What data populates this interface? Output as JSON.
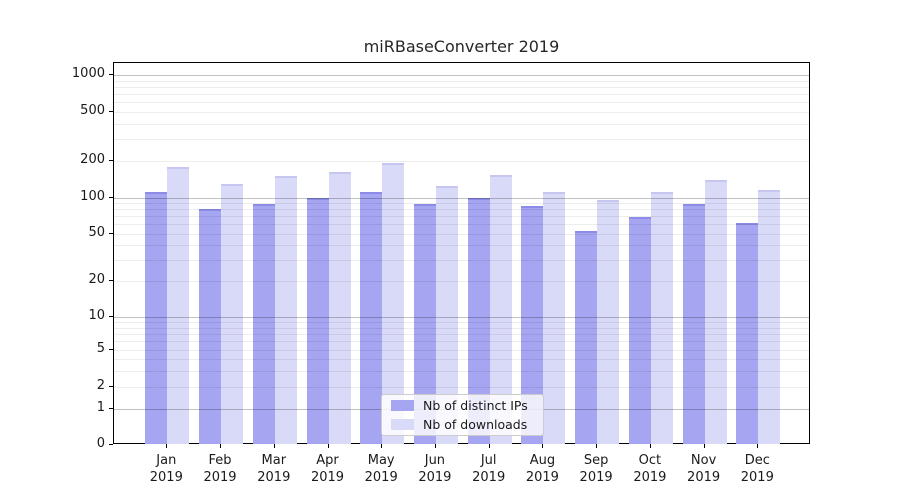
{
  "chart_data": {
    "type": "bar",
    "title": "miRBaseConverter 2019",
    "categories": [
      "Jan",
      "Feb",
      "Mar",
      "Apr",
      "May",
      "Jun",
      "Jul",
      "Aug",
      "Sep",
      "Oct",
      "Nov",
      "Dec"
    ],
    "x_tick_second_line": "2019",
    "series": [
      {
        "name": "Nb of distinct IPs",
        "color": "#a5a5f1",
        "edge_color": "#8c8ce6",
        "values": [
          110,
          80,
          89,
          100,
          112,
          88,
          100,
          85,
          53,
          69,
          88,
          62
        ]
      },
      {
        "name": "Nb of downloads",
        "color": "#d9d9f8",
        "edge_color": "#c6c6f0",
        "values": [
          176,
          130,
          150,
          160,
          192,
          123,
          154,
          112,
          95,
          110,
          138,
          115
        ]
      }
    ],
    "yscale": "symlog",
    "yticks": [
      0,
      1,
      2,
      5,
      10,
      20,
      50,
      100,
      200,
      500,
      1000
    ],
    "ylim": [
      0,
      1000
    ],
    "grid": "horizontal, minor log divisions",
    "legend_position": "lower center"
  }
}
